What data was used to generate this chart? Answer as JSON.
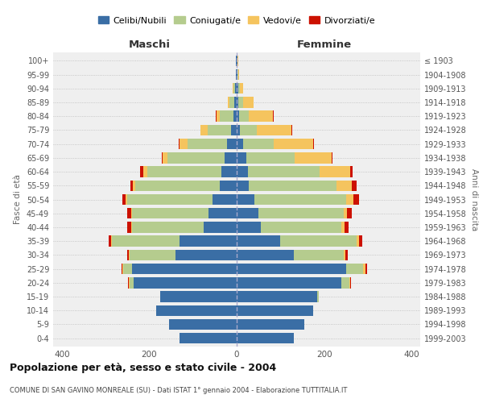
{
  "age_groups": [
    "0-4",
    "5-9",
    "10-14",
    "15-19",
    "20-24",
    "25-29",
    "30-34",
    "35-39",
    "40-44",
    "45-49",
    "50-54",
    "55-59",
    "60-64",
    "65-69",
    "70-74",
    "75-79",
    "80-84",
    "85-89",
    "90-94",
    "95-99",
    "100+"
  ],
  "birth_years": [
    "1999-2003",
    "1994-1998",
    "1989-1993",
    "1984-1988",
    "1979-1983",
    "1974-1978",
    "1969-1973",
    "1964-1968",
    "1959-1963",
    "1954-1958",
    "1949-1953",
    "1944-1948",
    "1939-1943",
    "1934-1938",
    "1929-1933",
    "1924-1928",
    "1919-1923",
    "1914-1918",
    "1909-1913",
    "1904-1908",
    "≤ 1903"
  ],
  "maschi": {
    "celibi": [
      130,
      155,
      185,
      175,
      235,
      240,
      140,
      130,
      75,
      65,
      55,
      38,
      35,
      28,
      22,
      12,
      8,
      5,
      3,
      1,
      1
    ],
    "coniugati": [
      0,
      0,
      0,
      0,
      10,
      20,
      105,
      155,
      165,
      175,
      195,
      195,
      170,
      130,
      90,
      55,
      30,
      12,
      5,
      1,
      0
    ],
    "vedovi": [
      0,
      0,
      0,
      0,
      2,
      2,
      2,
      2,
      2,
      2,
      4,
      4,
      8,
      12,
      18,
      15,
      8,
      3,
      1,
      0,
      0
    ],
    "divorziati": [
      0,
      0,
      0,
      0,
      1,
      2,
      4,
      6,
      8,
      8,
      8,
      6,
      8,
      2,
      2,
      1,
      1,
      0,
      0,
      0,
      0
    ]
  },
  "femmine": {
    "nubili": [
      130,
      155,
      175,
      185,
      240,
      250,
      130,
      100,
      55,
      50,
      40,
      28,
      25,
      22,
      15,
      8,
      6,
      4,
      3,
      2,
      2
    ],
    "coniugate": [
      0,
      0,
      0,
      2,
      18,
      40,
      115,
      175,
      185,
      195,
      210,
      200,
      165,
      110,
      70,
      38,
      22,
      10,
      4,
      1,
      0
    ],
    "vedove": [
      0,
      0,
      0,
      0,
      2,
      5,
      4,
      5,
      6,
      8,
      18,
      35,
      70,
      85,
      90,
      80,
      55,
      25,
      8,
      2,
      1
    ],
    "divorziate": [
      0,
      0,
      0,
      0,
      1,
      3,
      5,
      8,
      10,
      10,
      12,
      12,
      6,
      2,
      2,
      1,
      1,
      0,
      0,
      0,
      0
    ]
  },
  "colors": {
    "celibi": "#3A6EA5",
    "coniugati": "#B5CC8E",
    "vedovi": "#F5C45E",
    "divorziati": "#CC1100"
  },
  "xlim": 420,
  "title": "Popolazione per età, sesso e stato civile - 2004",
  "subtitle": "COMUNE DI SAN GAVINO MONREALE (SU) - Dati ISTAT 1° gennaio 2004 - Elaborazione TUTTITALIA.IT",
  "xlabel_left": "Maschi",
  "xlabel_right": "Femmine",
  "ylabel_left": "Fasce di età",
  "ylabel_right": "Anni di nascita",
  "legend_labels": [
    "Celibi/Nubili",
    "Coniugati/e",
    "Vedovi/e",
    "Divorziati/e"
  ],
  "bg_color": "#FFFFFF",
  "plot_bg": "#EFEFEF"
}
